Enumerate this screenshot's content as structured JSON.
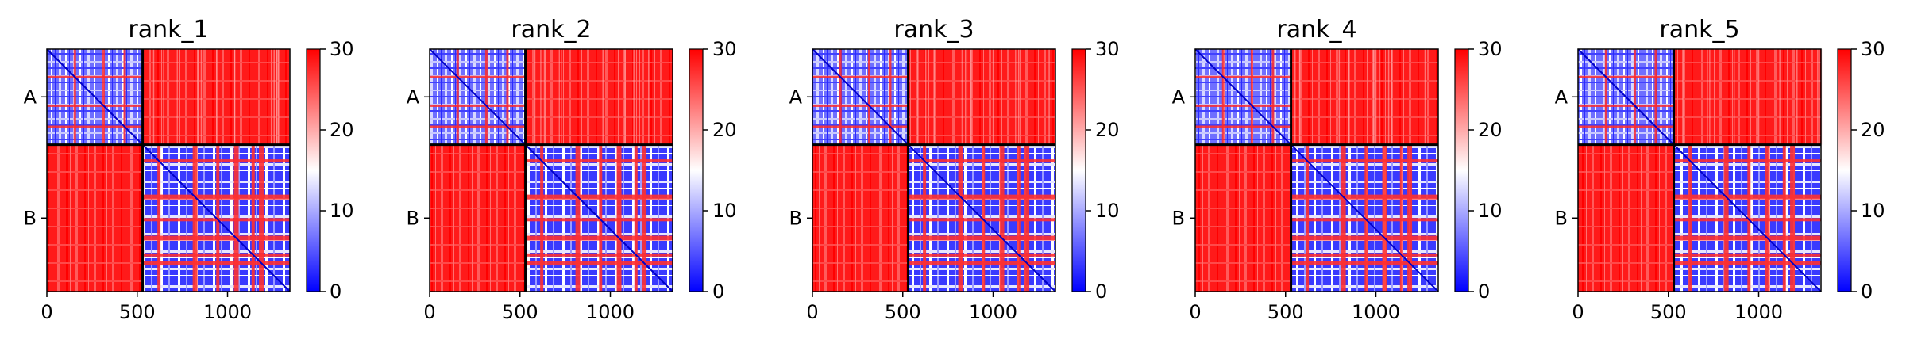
{
  "chart_data": [
    {
      "type": "heatmap",
      "title": "rank_1",
      "chain_labels": [
        "A",
        "B"
      ],
      "chain_boundary": 530,
      "x_ticks": [
        "0",
        "500",
        "1000"
      ],
      "x_tick_values": [
        0,
        500,
        1000
      ],
      "xlim": [
        0,
        1345
      ],
      "colorbar": {
        "ticks": [
          "0",
          "10",
          "20",
          "30"
        ],
        "tick_values": [
          0,
          10,
          20,
          30
        ],
        "range": [
          0,
          30
        ],
        "colormap": "bwr"
      }
    },
    {
      "type": "heatmap",
      "title": "rank_2",
      "chain_labels": [
        "A",
        "B"
      ],
      "chain_boundary": 530,
      "x_ticks": [
        "0",
        "500",
        "1000"
      ],
      "x_tick_values": [
        0,
        500,
        1000
      ],
      "xlim": [
        0,
        1345
      ],
      "colorbar": {
        "ticks": [
          "0",
          "10",
          "20",
          "30"
        ],
        "tick_values": [
          0,
          10,
          20,
          30
        ],
        "range": [
          0,
          30
        ],
        "colormap": "bwr"
      }
    },
    {
      "type": "heatmap",
      "title": "rank_3",
      "chain_labels": [
        "A",
        "B"
      ],
      "chain_boundary": 530,
      "x_ticks": [
        "0",
        "500",
        "1000"
      ],
      "x_tick_values": [
        0,
        500,
        1000
      ],
      "xlim": [
        0,
        1345
      ],
      "colorbar": {
        "ticks": [
          "0",
          "10",
          "20",
          "30"
        ],
        "tick_values": [
          0,
          10,
          20,
          30
        ],
        "range": [
          0,
          30
        ],
        "colormap": "bwr"
      }
    },
    {
      "type": "heatmap",
      "title": "rank_4",
      "chain_labels": [
        "A",
        "B"
      ],
      "chain_boundary": 530,
      "x_ticks": [
        "0",
        "500",
        "1000"
      ],
      "x_tick_values": [
        0,
        500,
        1000
      ],
      "xlim": [
        0,
        1345
      ],
      "colorbar": {
        "ticks": [
          "0",
          "10",
          "20",
          "30"
        ],
        "tick_values": [
          0,
          10,
          20,
          30
        ],
        "range": [
          0,
          30
        ],
        "colormap": "bwr"
      }
    },
    {
      "type": "heatmap",
      "title": "rank_5",
      "chain_labels": [
        "A",
        "B"
      ],
      "chain_boundary": 530,
      "x_ticks": [
        "0",
        "500",
        "1000"
      ],
      "x_tick_values": [
        0,
        500,
        1000
      ],
      "xlim": [
        0,
        1345
      ],
      "colorbar": {
        "ticks": [
          "0",
          "10",
          "20",
          "30"
        ],
        "tick_values": [
          0,
          10,
          20,
          30
        ],
        "range": [
          0,
          30
        ],
        "colormap": "bwr"
      }
    }
  ],
  "colors": {
    "high": "#ff0000",
    "mid": "#ffffff",
    "low": "#0000ff",
    "axis": "#000000"
  }
}
